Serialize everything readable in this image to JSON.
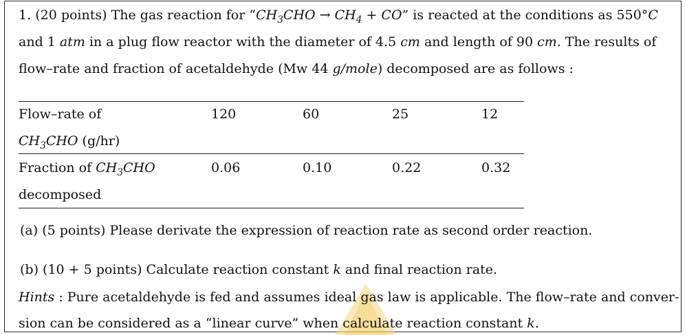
{
  "problem": {
    "number": "1.",
    "points": "(20 points)",
    "intro_before_reaction": "The gas reaction for “",
    "reaction": {
      "reactant": "CH3CHO",
      "arrow": "→",
      "product1": "CH4",
      "plus": "+",
      "product2": "CO"
    },
    "intro_after_reaction": "” is reacted at the conditions as 550",
    "temp_unit": "°C",
    "line2_part1": "and 1",
    "atm_unit": "atm",
    "line2_part2": "in a plug flow reactor with the diameter of 4.5",
    "cm_unit_1": "cm",
    "line2_part3": "and length of 90",
    "cm_unit_2": "cm.",
    "line2_part4": "The results of",
    "line3": "flow–rate and fraction of acetaldehyde (Mw 44",
    "mw_unit": "g/mole",
    "line3_end": ") decomposed are as follows :"
  },
  "table": {
    "row1_label_line1": "Flow–rate of",
    "row1_label_line2_math": "CH3CHO",
    "row1_label_line2_unit": " (g/hr)",
    "row1_values": [
      "120",
      "60",
      "25",
      "12"
    ],
    "row2_label_line1_text": "Fraction of ",
    "row2_label_line1_math": "CH3CHO",
    "row2_label_line2": "decomposed",
    "row2_values": [
      "0.06",
      "0.10",
      "0.22",
      "0.32"
    ]
  },
  "parts": {
    "a_label": "(a)",
    "a_points": "(5 points)",
    "a_text": "Please derivate the expression of reaction rate as second order reaction.",
    "b_label": "(b)",
    "b_points": "(10 + 5 points)",
    "b_text_before_k": "Calculate reaction constant ",
    "b_k": "k",
    "b_text_after_k": " and final reaction rate."
  },
  "hints": {
    "label": "Hints",
    "line1_text": " : Pure acetaldehyde is fed and assumes ideal gas law is applicable. The flow–rate and conver-",
    "line2_text_before_k": "sion can be considered as a “linear curve” when calculate reaction constant ",
    "line2_k": "k",
    "line2_end": "."
  },
  "colors": {
    "border": "#2b2b2b",
    "text": "#111111",
    "watermark": "#f2c14e"
  }
}
